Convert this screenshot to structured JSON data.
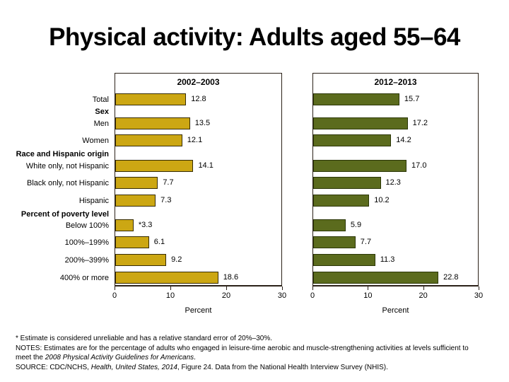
{
  "title": "Physical activity: Adults aged 55–64",
  "chart_data": {
    "type": "bar",
    "orientation": "horizontal",
    "xlabel": "Percent",
    "xlim": [
      0,
      30
    ],
    "xticks": [
      "0",
      "10",
      "20",
      "30"
    ],
    "grid": false,
    "panels": [
      {
        "title": "2002–2003",
        "fill": "#cca713",
        "border": "#362c06"
      },
      {
        "title": "2012–2013",
        "fill": "#5b6b1d",
        "border": "#2c3708"
      }
    ],
    "rows": [
      {
        "type": "bar",
        "label": "Total",
        "values": [
          12.8,
          15.7
        ],
        "value_labels": [
          "12.8",
          "15.7"
        ]
      },
      {
        "type": "header",
        "label": "Sex"
      },
      {
        "type": "bar",
        "label": "Men",
        "values": [
          13.5,
          17.2
        ],
        "value_labels": [
          "13.5",
          "17.2"
        ]
      },
      {
        "type": "bar",
        "label": "Women",
        "values": [
          12.1,
          14.2
        ],
        "value_labels": [
          "12.1",
          "14.2"
        ]
      },
      {
        "type": "header",
        "label": "Race and Hispanic origin"
      },
      {
        "type": "bar",
        "label": "White only, not Hispanic",
        "values": [
          14.1,
          17.0
        ],
        "value_labels": [
          "14.1",
          "17.0"
        ]
      },
      {
        "type": "bar",
        "label": "Black only, not Hispanic",
        "values": [
          7.7,
          12.3
        ],
        "value_labels": [
          "7.7",
          "12.3"
        ]
      },
      {
        "type": "bar",
        "label": "Hispanic",
        "values": [
          7.3,
          10.2
        ],
        "value_labels": [
          "7.3",
          "10.2"
        ]
      },
      {
        "type": "header",
        "label": "Percent of poverty level"
      },
      {
        "type": "bar",
        "label": "Below 100%",
        "values": [
          3.3,
          5.9
        ],
        "value_labels": [
          "*3.3",
          "5.9"
        ]
      },
      {
        "type": "bar",
        "label": "100%–199%",
        "values": [
          6.1,
          7.7
        ],
        "value_labels": [
          "6.1",
          "7.7"
        ]
      },
      {
        "type": "bar",
        "label": "200%–399%",
        "values": [
          9.2,
          11.3
        ],
        "value_labels": [
          "9.2",
          "11.3"
        ]
      },
      {
        "type": "bar",
        "label": "400% or more",
        "values": [
          18.6,
          22.8
        ],
        "value_labels": [
          "18.6",
          "22.8"
        ]
      }
    ]
  },
  "footnotes": [
    [
      {
        "text": "* Estimate is considered unreliable and has a relative standard error of 20%–30%."
      }
    ],
    [
      {
        "text": "NOTES: Estimates are for the percentage of adults who engaged in leisure-time aerobic and muscle-strengthening activities at levels sufficient to"
      }
    ],
    [
      {
        "text": "meet the "
      },
      {
        "text": "2008 Physical Activity Guidelines for Americans",
        "italic": true
      },
      {
        "text": "."
      }
    ],
    [
      {
        "text": "SOURCE: CDC/NCHS, "
      },
      {
        "text": "Health, United States, 2014",
        "italic": true
      },
      {
        "text": ", Figure 24. Data from the National Health Interview Survey (NHIS)."
      }
    ]
  ]
}
